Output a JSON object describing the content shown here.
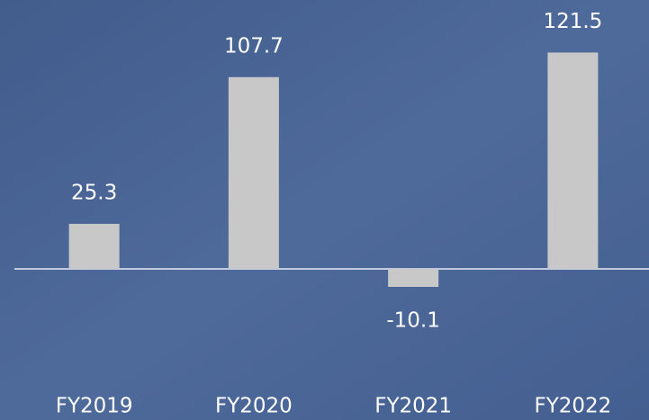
{
  "chart_data": {
    "type": "bar",
    "categories": [
      "FY2019",
      "FY2020",
      "FY2021",
      "FY2022"
    ],
    "values": [
      25.3,
      107.7,
      -10.1,
      121.5
    ],
    "color": "#c8c8c8",
    "ylim": [
      -20,
      130
    ]
  }
}
